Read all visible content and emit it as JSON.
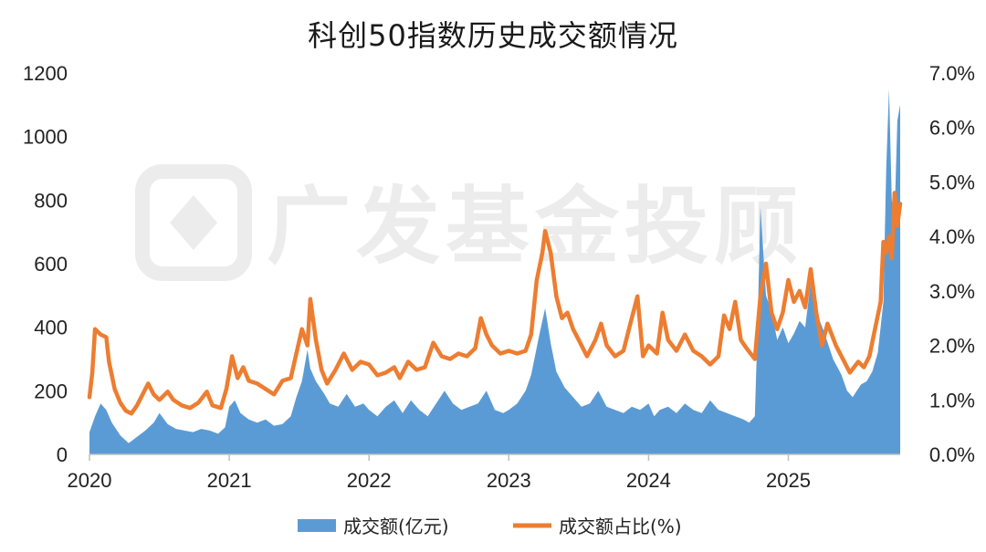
{
  "chart_data": {
    "type": "area+line",
    "title": "科创50指数历史成交额情况",
    "x_ticks": [
      "2020",
      "2021",
      "2022",
      "2023",
      "2024",
      "2025"
    ],
    "y_left": {
      "ticks": [
        "0",
        "200",
        "400",
        "600",
        "800",
        "1000",
        "1200"
      ],
      "range": [
        0,
        1200
      ]
    },
    "y_right": {
      "ticks": [
        "0.0%",
        "1.0%",
        "2.0%",
        "3.0%",
        "4.0%",
        "5.0%",
        "6.0%",
        "7.0%"
      ],
      "range": [
        0,
        7
      ]
    },
    "legend": {
      "placement": "bottom-center"
    },
    "series": [
      {
        "name": "成交额(亿元)",
        "kind": "area",
        "axis": "left",
        "color": "#5b9bd5",
        "points": [
          [
            2020.0,
            70
          ],
          [
            2020.04,
            120
          ],
          [
            2020.08,
            160
          ],
          [
            2020.12,
            140
          ],
          [
            2020.16,
            100
          ],
          [
            2020.22,
            60
          ],
          [
            2020.28,
            35
          ],
          [
            2020.34,
            55
          ],
          [
            2020.4,
            75
          ],
          [
            2020.46,
            100
          ],
          [
            2020.5,
            130
          ],
          [
            2020.56,
            95
          ],
          [
            2020.62,
            80
          ],
          [
            2020.68,
            75
          ],
          [
            2020.74,
            70
          ],
          [
            2020.8,
            80
          ],
          [
            2020.86,
            75
          ],
          [
            2020.92,
            65
          ],
          [
            2020.97,
            85
          ],
          [
            2021.0,
            150
          ],
          [
            2021.04,
            170
          ],
          [
            2021.08,
            130
          ],
          [
            2021.14,
            110
          ],
          [
            2021.2,
            100
          ],
          [
            2021.26,
            110
          ],
          [
            2021.32,
            90
          ],
          [
            2021.38,
            95
          ],
          [
            2021.44,
            120
          ],
          [
            2021.48,
            180
          ],
          [
            2021.52,
            230
          ],
          [
            2021.56,
            330
          ],
          [
            2021.58,
            270
          ],
          [
            2021.62,
            230
          ],
          [
            2021.68,
            190
          ],
          [
            2021.72,
            160
          ],
          [
            2021.78,
            150
          ],
          [
            2021.84,
            190
          ],
          [
            2021.9,
            150
          ],
          [
            2021.96,
            160
          ],
          [
            2022.0,
            140
          ],
          [
            2022.06,
            120
          ],
          [
            2022.12,
            150
          ],
          [
            2022.18,
            170
          ],
          [
            2022.24,
            130
          ],
          [
            2022.3,
            170
          ],
          [
            2022.36,
            140
          ],
          [
            2022.42,
            120
          ],
          [
            2022.48,
            160
          ],
          [
            2022.54,
            200
          ],
          [
            2022.6,
            160
          ],
          [
            2022.66,
            140
          ],
          [
            2022.72,
            150
          ],
          [
            2022.78,
            160
          ],
          [
            2022.84,
            200
          ],
          [
            2022.9,
            140
          ],
          [
            2022.96,
            130
          ],
          [
            2023.0,
            140
          ],
          [
            2023.06,
            160
          ],
          [
            2023.12,
            200
          ],
          [
            2023.16,
            250
          ],
          [
            2023.22,
            380
          ],
          [
            2023.26,
            460
          ],
          [
            2023.3,
            350
          ],
          [
            2023.34,
            260
          ],
          [
            2023.4,
            210
          ],
          [
            2023.46,
            180
          ],
          [
            2023.52,
            150
          ],
          [
            2023.58,
            160
          ],
          [
            2023.64,
            200
          ],
          [
            2023.7,
            150
          ],
          [
            2023.76,
            140
          ],
          [
            2023.82,
            130
          ],
          [
            2023.88,
            150
          ],
          [
            2023.94,
            140
          ],
          [
            2024.0,
            160
          ],
          [
            2024.04,
            120
          ],
          [
            2024.08,
            140
          ],
          [
            2024.14,
            150
          ],
          [
            2024.2,
            130
          ],
          [
            2024.26,
            160
          ],
          [
            2024.32,
            140
          ],
          [
            2024.38,
            130
          ],
          [
            2024.44,
            170
          ],
          [
            2024.5,
            140
          ],
          [
            2024.56,
            130
          ],
          [
            2024.62,
            120
          ],
          [
            2024.68,
            110
          ],
          [
            2024.72,
            100
          ],
          [
            2024.76,
            120
          ],
          [
            2024.78,
            400
          ],
          [
            2024.8,
            780
          ],
          [
            2024.84,
            500
          ],
          [
            2024.88,
            450
          ],
          [
            2024.92,
            360
          ],
          [
            2024.96,
            400
          ],
          [
            2025.0,
            350
          ],
          [
            2025.04,
            380
          ],
          [
            2025.08,
            420
          ],
          [
            2025.12,
            400
          ],
          [
            2025.16,
            540
          ],
          [
            2025.2,
            450
          ],
          [
            2025.26,
            380
          ],
          [
            2025.32,
            300
          ],
          [
            2025.38,
            250
          ],
          [
            2025.42,
            200
          ],
          [
            2025.46,
            180
          ],
          [
            2025.52,
            220
          ],
          [
            2025.56,
            230
          ],
          [
            2025.6,
            260
          ],
          [
            2025.64,
            320
          ],
          [
            2025.68,
            480
          ],
          [
            2025.7,
            900
          ],
          [
            2025.72,
            1150
          ],
          [
            2025.74,
            800
          ],
          [
            2025.76,
            750
          ],
          [
            2025.78,
            1050
          ],
          [
            2025.8,
            1100
          ]
        ]
      },
      {
        "name": "成交额占比(%)",
        "kind": "line",
        "axis": "right",
        "color": "#ed7d31",
        "points": [
          [
            2020.0,
            1.05
          ],
          [
            2020.02,
            1.5
          ],
          [
            2020.04,
            2.3
          ],
          [
            2020.08,
            2.2
          ],
          [
            2020.12,
            2.15
          ],
          [
            2020.14,
            1.7
          ],
          [
            2020.18,
            1.2
          ],
          [
            2020.22,
            0.95
          ],
          [
            2020.26,
            0.8
          ],
          [
            2020.3,
            0.75
          ],
          [
            2020.34,
            0.9
          ],
          [
            2020.38,
            1.1
          ],
          [
            2020.42,
            1.3
          ],
          [
            2020.46,
            1.1
          ],
          [
            2020.5,
            1.0
          ],
          [
            2020.56,
            1.15
          ],
          [
            2020.6,
            1.0
          ],
          [
            2020.66,
            0.9
          ],
          [
            2020.72,
            0.85
          ],
          [
            2020.78,
            0.95
          ],
          [
            2020.84,
            1.15
          ],
          [
            2020.88,
            0.9
          ],
          [
            2020.94,
            0.85
          ],
          [
            2020.98,
            1.2
          ],
          [
            2021.02,
            1.8
          ],
          [
            2021.06,
            1.4
          ],
          [
            2021.1,
            1.6
          ],
          [
            2021.14,
            1.35
          ],
          [
            2021.2,
            1.3
          ],
          [
            2021.26,
            1.2
          ],
          [
            2021.32,
            1.1
          ],
          [
            2021.38,
            1.35
          ],
          [
            2021.44,
            1.4
          ],
          [
            2021.48,
            1.85
          ],
          [
            2021.52,
            2.3
          ],
          [
            2021.56,
            2.0
          ],
          [
            2021.58,
            2.85
          ],
          [
            2021.62,
            2.1
          ],
          [
            2021.66,
            1.55
          ],
          [
            2021.7,
            1.3
          ],
          [
            2021.76,
            1.55
          ],
          [
            2021.82,
            1.85
          ],
          [
            2021.88,
            1.55
          ],
          [
            2021.94,
            1.7
          ],
          [
            2022.0,
            1.65
          ],
          [
            2022.06,
            1.45
          ],
          [
            2022.12,
            1.5
          ],
          [
            2022.18,
            1.6
          ],
          [
            2022.22,
            1.4
          ],
          [
            2022.28,
            1.7
          ],
          [
            2022.34,
            1.55
          ],
          [
            2022.4,
            1.6
          ],
          [
            2022.46,
            2.05
          ],
          [
            2022.52,
            1.8
          ],
          [
            2022.58,
            1.75
          ],
          [
            2022.64,
            1.85
          ],
          [
            2022.7,
            1.8
          ],
          [
            2022.76,
            1.95
          ],
          [
            2022.8,
            2.5
          ],
          [
            2022.84,
            2.2
          ],
          [
            2022.88,
            2.0
          ],
          [
            2022.94,
            1.85
          ],
          [
            2023.0,
            1.9
          ],
          [
            2023.06,
            1.85
          ],
          [
            2023.12,
            1.9
          ],
          [
            2023.16,
            2.2
          ],
          [
            2023.2,
            3.2
          ],
          [
            2023.24,
            3.7
          ],
          [
            2023.26,
            4.1
          ],
          [
            2023.3,
            3.7
          ],
          [
            2023.34,
            2.9
          ],
          [
            2023.38,
            2.5
          ],
          [
            2023.42,
            2.6
          ],
          [
            2023.46,
            2.3
          ],
          [
            2023.5,
            2.1
          ],
          [
            2023.56,
            1.8
          ],
          [
            2023.62,
            2.1
          ],
          [
            2023.66,
            2.4
          ],
          [
            2023.7,
            2.0
          ],
          [
            2023.76,
            1.8
          ],
          [
            2023.82,
            1.9
          ],
          [
            2023.88,
            2.5
          ],
          [
            2023.92,
            2.9
          ],
          [
            2023.96,
            1.8
          ],
          [
            2024.0,
            2.0
          ],
          [
            2024.06,
            1.85
          ],
          [
            2024.1,
            2.6
          ],
          [
            2024.14,
            2.1
          ],
          [
            2024.2,
            1.9
          ],
          [
            2024.26,
            2.2
          ],
          [
            2024.32,
            1.9
          ],
          [
            2024.38,
            1.8
          ],
          [
            2024.44,
            1.65
          ],
          [
            2024.5,
            1.8
          ],
          [
            2024.54,
            2.55
          ],
          [
            2024.58,
            2.3
          ],
          [
            2024.62,
            2.8
          ],
          [
            2024.66,
            2.1
          ],
          [
            2024.7,
            1.95
          ],
          [
            2024.76,
            1.75
          ],
          [
            2024.8,
            2.9
          ],
          [
            2024.84,
            3.5
          ],
          [
            2024.88,
            2.6
          ],
          [
            2024.92,
            2.3
          ],
          [
            2024.96,
            2.6
          ],
          [
            2025.0,
            3.2
          ],
          [
            2025.04,
            2.8
          ],
          [
            2025.08,
            3.0
          ],
          [
            2025.12,
            2.7
          ],
          [
            2025.16,
            3.4
          ],
          [
            2025.2,
            2.6
          ],
          [
            2025.24,
            2.0
          ],
          [
            2025.28,
            2.4
          ],
          [
            2025.34,
            2.0
          ],
          [
            2025.4,
            1.7
          ],
          [
            2025.44,
            1.5
          ],
          [
            2025.5,
            1.7
          ],
          [
            2025.54,
            1.6
          ],
          [
            2025.58,
            1.8
          ],
          [
            2025.62,
            2.3
          ],
          [
            2025.66,
            2.8
          ],
          [
            2025.68,
            3.9
          ],
          [
            2025.7,
            3.7
          ],
          [
            2025.72,
            4.0
          ],
          [
            2025.74,
            3.6
          ],
          [
            2025.76,
            4.8
          ],
          [
            2025.78,
            4.2
          ],
          [
            2025.8,
            4.6
          ]
        ]
      }
    ]
  },
  "watermark": {
    "text": "广发基金投顾",
    "color": "#ececec"
  }
}
